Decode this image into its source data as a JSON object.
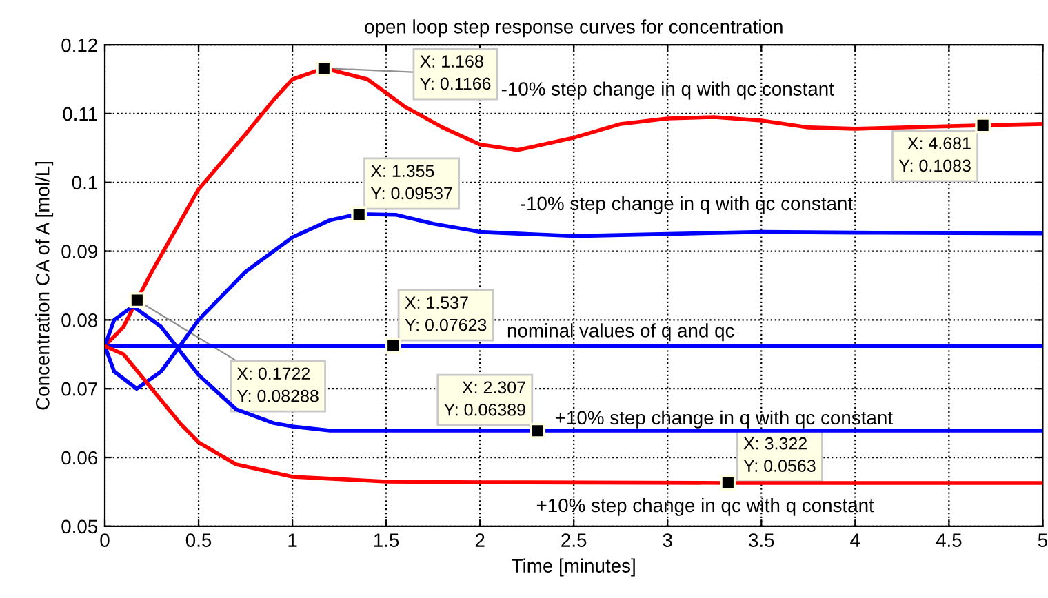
{
  "chart_data": {
    "type": "line",
    "title": "open loop step response curves for concentration",
    "xlabel": "Time [minutes]",
    "ylabel": "Concentration CA of A [mol/L]",
    "xlim": [
      0,
      5
    ],
    "xticks": [
      0,
      0.5,
      1,
      1.5,
      2,
      2.5,
      3,
      3.5,
      4,
      4.5,
      5
    ],
    "ylim": [
      0.05,
      0.12
    ],
    "yticks": [
      0.05,
      0.06,
      0.07,
      0.08,
      0.09,
      0.1,
      0.11,
      0.12
    ],
    "grid": true,
    "line_style": "solid",
    "series": [
      {
        "color": "#ff0000",
        "x": [
          0,
          0.1,
          0.1722,
          0.25,
          0.5,
          0.75,
          0.9,
          1.0,
          1.168,
          1.4,
          1.6,
          1.8,
          2.0,
          2.2,
          2.5,
          2.75,
          3.0,
          3.25,
          3.5,
          3.75,
          4.0,
          4.681,
          5.0
        ],
        "values": [
          0.0762,
          0.079,
          0.0829,
          0.087,
          0.099,
          0.107,
          0.112,
          0.115,
          0.1166,
          0.115,
          0.111,
          0.108,
          0.1055,
          0.1047,
          0.1065,
          0.1085,
          0.1093,
          0.1095,
          0.109,
          0.108,
          0.1078,
          0.1083,
          0.1085
        ]
      },
      {
        "color": "#0000ff",
        "x": [
          0,
          0.05,
          0.17,
          0.3,
          0.4,
          0.5,
          0.75,
          1.0,
          1.2,
          1.355,
          1.55,
          1.75,
          2.0,
          2.5,
          3.0,
          3.5,
          4.0,
          5.0
        ],
        "values": [
          0.0762,
          0.0725,
          0.07,
          0.0725,
          0.0762,
          0.08,
          0.087,
          0.092,
          0.0945,
          0.0954,
          0.0953,
          0.094,
          0.0928,
          0.0922,
          0.0925,
          0.0928,
          0.0927,
          0.0926
        ]
      },
      {
        "color": "#0000ff",
        "x": [
          0,
          5
        ],
        "values": [
          0.0762,
          0.0762
        ]
      },
      {
        "color": "#0000ff",
        "x": [
          0,
          0.05,
          0.15,
          0.3,
          0.5,
          0.7,
          0.9,
          1.0,
          1.2,
          2.307,
          5.0
        ],
        "values": [
          0.0762,
          0.08,
          0.082,
          0.079,
          0.072,
          0.067,
          0.065,
          0.0645,
          0.0639,
          0.0639,
          0.0639
        ]
      },
      {
        "color": "#ff0000",
        "x": [
          0,
          0.1,
          0.25,
          0.4,
          0.5,
          0.7,
          1.0,
          1.5,
          2.0,
          3.322,
          5.0
        ],
        "values": [
          0.0762,
          0.075,
          0.07,
          0.065,
          0.0622,
          0.059,
          0.0572,
          0.0565,
          0.0564,
          0.0563,
          0.0563
        ]
      }
    ],
    "annotations": [
      "-10% step change in q with qc constant",
      "-10% step change in q with qc constant",
      "nominal values of q and qc",
      "+10% step change in q with qc constant",
      "+10% step change in qc with q constant",
      {
        "text": "X: 1.168\nY: 0.1166",
        "x": 1.168,
        "y": 0.1166
      },
      {
        "text": "X: 1.355\nY: 0.09537",
        "x": 1.355,
        "y": 0.09537
      },
      {
        "text": "X: 0.1722\nY: 0.08288",
        "x": 0.1722,
        "y": 0.08288
      },
      {
        "text": "X: 1.537\nY: 0.07623",
        "x": 1.537,
        "y": 0.07623
      },
      {
        "text": "X: 2.307\nY: 0.06389",
        "x": 2.307,
        "y": 0.06389
      },
      {
        "text": "X: 3.322\nY: 0.0563",
        "x": 3.322,
        "y": 0.0563
      },
      {
        "text": "X: 4.681\nY: 0.1083",
        "x": 4.681,
        "y": 0.1083
      }
    ]
  }
}
